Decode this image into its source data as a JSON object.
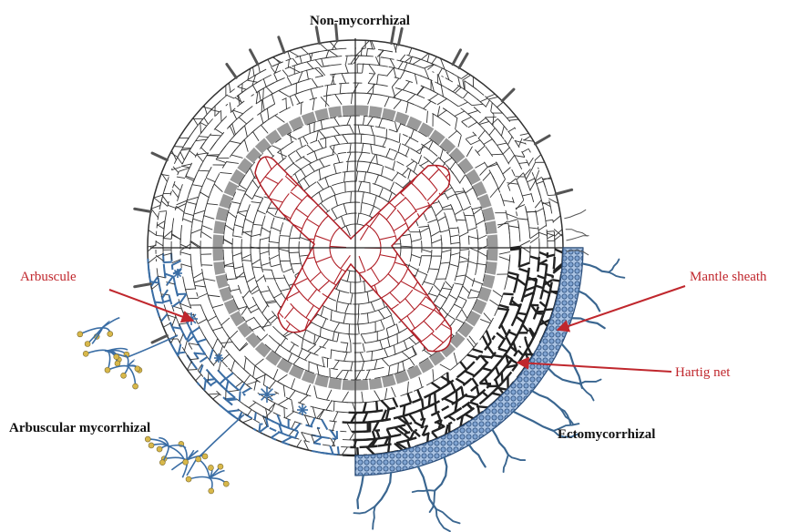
{
  "labels": {
    "top": "Non-mycorrhizal",
    "arbuscule": "Arbuscule",
    "mantle": "Mantle sheath",
    "hartig": "Hartig net",
    "arbuscular": "Arbuscular mycorrhizal",
    "ecto": "Ectomycorrhizal"
  }
}
